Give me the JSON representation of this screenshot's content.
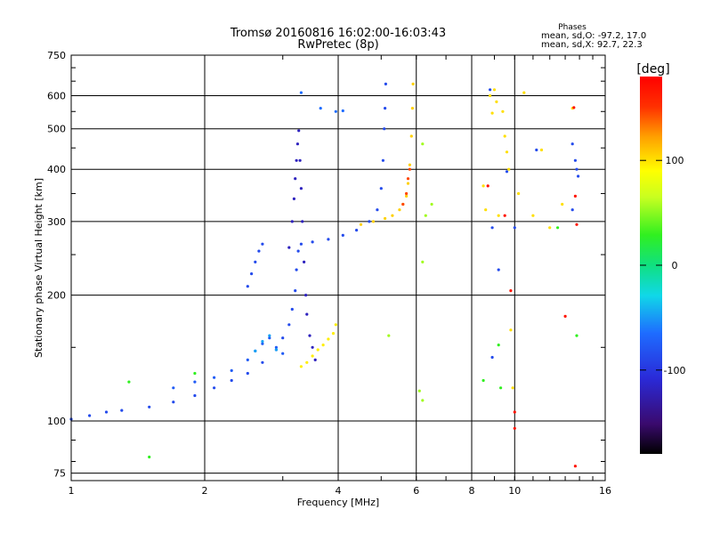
{
  "chart_data": {
    "type": "scatter",
    "title": "Tromsø 20160816 16:02:00-16:03:43",
    "subtitle": "RwPretec (8p)",
    "stats": {
      "heading": "Phases",
      "line1": "mean, sd,O: -97.2, 17.0",
      "line2": "mean, sd,X:  92.7, 22.3"
    },
    "xlabel": "Frequency [MHz]",
    "ylabel": "Stationary phase Virtual Height [km]",
    "x_scale": "log",
    "y_scale": "log",
    "xlim": [
      1,
      16
    ],
    "ylim": [
      72,
      750
    ],
    "x_ticks": [
      1,
      2,
      4,
      6,
      8,
      10,
      16
    ],
    "x_tick_labels": [
      "1",
      "2",
      "4",
      "6",
      "8",
      "10",
      "16"
    ],
    "y_ticks": [
      75,
      100,
      200,
      300,
      400,
      500,
      600,
      750
    ],
    "y_tick_labels": [
      "75",
      "100",
      "200",
      "300",
      "400",
      "500",
      "600",
      "750"
    ],
    "grid": true,
    "colorbar": {
      "label": "[deg]",
      "range": [
        -180,
        180
      ],
      "ticks": [
        100,
        0,
        -100
      ],
      "tick_labels": [
        "100",
        "0",
        "-100"
      ]
    },
    "traces": [
      {
        "phase": -100,
        "points": [
          [
            1.0,
            101
          ],
          [
            1.1,
            103
          ],
          [
            1.2,
            105
          ],
          [
            1.3,
            106
          ],
          [
            1.5,
            108
          ],
          [
            1.7,
            111
          ],
          [
            1.9,
            115
          ],
          [
            2.1,
            120
          ],
          [
            2.3,
            125
          ],
          [
            2.5,
            130
          ],
          [
            2.7,
            138
          ],
          [
            2.9,
            148
          ],
          [
            3.0,
            158
          ],
          [
            3.1,
            170
          ],
          [
            3.15,
            185
          ],
          [
            3.2,
            205
          ],
          [
            3.22,
            230
          ],
          [
            3.25,
            255
          ],
          [
            3.3,
            265
          ],
          [
            3.5,
            268
          ],
          [
            3.8,
            272
          ],
          [
            4.1,
            278
          ],
          [
            4.4,
            286
          ],
          [
            4.7,
            300
          ],
          [
            4.9,
            320
          ],
          [
            5.0,
            360
          ],
          [
            5.05,
            420
          ],
          [
            5.08,
            500
          ],
          [
            5.1,
            560
          ],
          [
            5.12,
            640
          ]
        ]
      },
      {
        "phase": -120,
        "points": [
          [
            3.1,
            260
          ],
          [
            3.15,
            300
          ],
          [
            3.18,
            340
          ],
          [
            3.2,
            380
          ],
          [
            3.22,
            420
          ],
          [
            3.24,
            460
          ],
          [
            3.26,
            495
          ],
          [
            3.28,
            420
          ],
          [
            3.3,
            360
          ],
          [
            3.32,
            300
          ],
          [
            3.35,
            240
          ],
          [
            3.38,
            200
          ],
          [
            3.4,
            180
          ],
          [
            3.45,
            160
          ],
          [
            3.5,
            150
          ],
          [
            3.55,
            140
          ]
        ]
      },
      {
        "phase": -95,
        "points": [
          [
            1.7,
            120
          ],
          [
            1.9,
            124
          ],
          [
            2.1,
            127
          ],
          [
            2.3,
            132
          ],
          [
            2.5,
            140
          ],
          [
            2.6,
            147
          ],
          [
            2.7,
            153
          ],
          [
            2.8,
            158
          ],
          [
            2.9,
            150
          ],
          [
            3.0,
            145
          ]
        ]
      },
      {
        "phase": -60,
        "points": [
          [
            2.6,
            147
          ],
          [
            2.7,
            155
          ],
          [
            2.8,
            160
          ],
          [
            2.9,
            148
          ]
        ]
      },
      {
        "phase": 105,
        "points": [
          [
            3.3,
            135
          ],
          [
            3.4,
            138
          ],
          [
            3.5,
            143
          ],
          [
            3.6,
            148
          ],
          [
            3.7,
            152
          ],
          [
            3.8,
            157
          ],
          [
            3.9,
            162
          ],
          [
            3.95,
            170
          ]
        ]
      },
      {
        "phase": 115,
        "points": [
          [
            4.5,
            295
          ],
          [
            4.8,
            300
          ],
          [
            5.1,
            305
          ],
          [
            5.3,
            310
          ],
          [
            5.5,
            320
          ],
          [
            5.6,
            330
          ],
          [
            5.7,
            345
          ],
          [
            5.75,
            370
          ],
          [
            5.8,
            410
          ],
          [
            5.85,
            480
          ],
          [
            5.88,
            560
          ],
          [
            5.9,
            640
          ]
        ]
      },
      {
        "phase": 150,
        "points": [
          [
            5.6,
            330
          ],
          [
            5.7,
            350
          ],
          [
            5.75,
            380
          ],
          [
            5.8,
            400
          ]
        ]
      },
      {
        "phase": -100,
        "points": [
          [
            2.5,
            210
          ],
          [
            2.55,
            225
          ],
          [
            2.6,
            240
          ],
          [
            2.65,
            255
          ],
          [
            2.7,
            265
          ]
        ]
      },
      {
        "phase": -90,
        "points": [
          [
            3.3,
            610
          ],
          [
            3.65,
            560
          ],
          [
            3.95,
            550
          ],
          [
            4.1,
            552
          ]
        ]
      },
      {
        "phase": 60,
        "points": [
          [
            6.2,
            460
          ],
          [
            6.3,
            310
          ],
          [
            6.5,
            330
          ],
          [
            6.2,
            240
          ],
          [
            5.2,
            160
          ],
          [
            6.1,
            118
          ],
          [
            6.2,
            112
          ]
        ]
      },
      {
        "phase": 110,
        "points": [
          [
            8.5,
            365
          ],
          [
            8.6,
            320
          ],
          [
            8.8,
            600
          ],
          [
            8.9,
            545
          ],
          [
            9.0,
            620
          ],
          [
            9.1,
            580
          ],
          [
            9.2,
            310
          ],
          [
            9.4,
            550
          ],
          [
            9.5,
            480
          ],
          [
            9.6,
            440
          ],
          [
            9.7,
            400
          ],
          [
            9.8,
            165
          ],
          [
            9.9,
            120
          ],
          [
            10.2,
            350
          ],
          [
            10.5,
            610
          ],
          [
            11.0,
            310
          ],
          [
            11.5,
            445
          ],
          [
            12.0,
            290
          ],
          [
            12.8,
            330
          ],
          [
            13.5,
            560
          ]
        ]
      },
      {
        "phase": -100,
        "points": [
          [
            8.8,
            620
          ],
          [
            8.9,
            290
          ],
          [
            8.9,
            142
          ],
          [
            9.2,
            230
          ],
          [
            9.6,
            395
          ],
          [
            10.0,
            290
          ],
          [
            13.5,
            460
          ],
          [
            13.7,
            420
          ],
          [
            13.8,
            400
          ],
          [
            13.9,
            385
          ],
          [
            13.5,
            320
          ],
          [
            11.2,
            445
          ]
        ]
      },
      {
        "phase": 170,
        "points": [
          [
            8.7,
            365
          ],
          [
            9.5,
            310
          ],
          [
            9.8,
            205
          ],
          [
            10.0,
            105
          ],
          [
            13.0,
            178
          ],
          [
            13.6,
            562
          ],
          [
            13.7,
            345
          ],
          [
            13.8,
            295
          ],
          [
            13.7,
            78
          ],
          [
            10.0,
            96
          ]
        ]
      },
      {
        "phase": 30,
        "points": [
          [
            1.35,
            124
          ],
          [
            1.9,
            130
          ],
          [
            1.5,
            82
          ],
          [
            8.5,
            125
          ],
          [
            9.3,
            120
          ],
          [
            12.5,
            290
          ],
          [
            13.8,
            160
          ],
          [
            9.2,
            152
          ]
        ]
      }
    ]
  }
}
